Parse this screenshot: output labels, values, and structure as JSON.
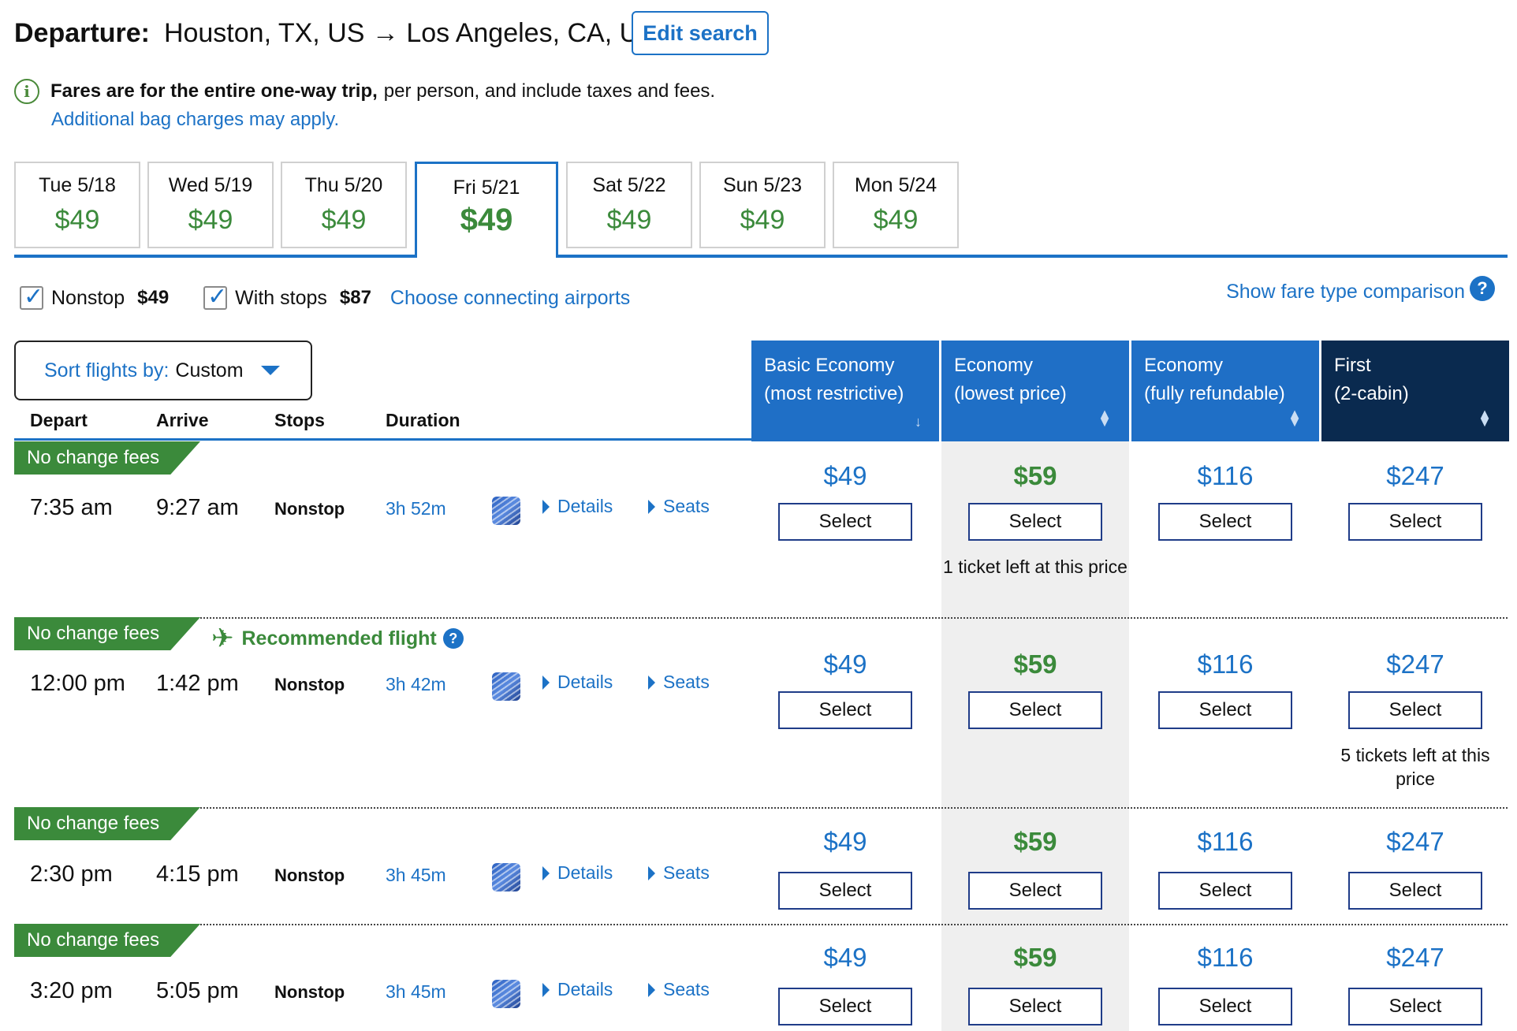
{
  "header": {
    "label": "Departure:",
    "route": "Houston, TX, US → Los Angeles, CA, US",
    "edit_label": "Edit search"
  },
  "info": {
    "bold": "Fares are for the entire one-way trip,",
    "rest": "per person, and include taxes and fees.",
    "bag_link": "Additional bag charges may apply."
  },
  "dates": [
    {
      "day": "Tue 5/18",
      "price": "$49"
    },
    {
      "day": "Wed 5/19",
      "price": "$49"
    },
    {
      "day": "Thu 5/20",
      "price": "$49"
    },
    {
      "day": "Fri 5/21",
      "price": "$49"
    },
    {
      "day": "Sat 5/22",
      "price": "$49"
    },
    {
      "day": "Sun 5/23",
      "price": "$49"
    },
    {
      "day": "Mon 5/24",
      "price": "$49"
    }
  ],
  "filters": {
    "nonstop_label": "Nonstop",
    "nonstop_price": "$49",
    "stops_label": "With stops",
    "stops_price": "$87",
    "connecting_link": "Choose connecting airports",
    "fare_compare": "Show fare type comparison"
  },
  "sort": {
    "key": "Sort flights by:",
    "value": "Custom"
  },
  "columns": {
    "depart": "Depart",
    "arrive": "Arrive",
    "stops": "Stops",
    "duration": "Duration"
  },
  "fare_headers": [
    {
      "line1": "Basic Economy",
      "line2": "(most restrictive)"
    },
    {
      "line1": "Economy",
      "line2": "(lowest price)"
    },
    {
      "line1": "Economy",
      "line2": "(fully refundable)"
    },
    {
      "line1": "First",
      "line2": "(2-cabin)"
    }
  ],
  "badge_text": "No change fees",
  "recommended_text": "Recommended flight",
  "details_label": "Details",
  "seats_label": "Seats",
  "select_label": "Select",
  "flights": [
    {
      "depart": "7:35 am",
      "arrive": "9:27 am",
      "stops": "Nonstop",
      "duration": "3h 52m",
      "prices": [
        "$49",
        "$59",
        "$116",
        "$247"
      ],
      "note_econ": "1 ticket left at this price",
      "note_first": ""
    },
    {
      "depart": "12:00 pm",
      "arrive": "1:42 pm",
      "stops": "Nonstop",
      "duration": "3h 42m",
      "prices": [
        "$49",
        "$59",
        "$116",
        "$247"
      ],
      "note_econ": "",
      "note_first": "5 tickets left at this price"
    },
    {
      "depart": "2:30 pm",
      "arrive": "4:15 pm",
      "stops": "Nonstop",
      "duration": "3h 45m",
      "prices": [
        "$49",
        "$59",
        "$116",
        "$247"
      ],
      "note_econ": "",
      "note_first": ""
    },
    {
      "depart": "3:20 pm",
      "arrive": "5:05 pm",
      "stops": "Nonstop",
      "duration": "3h 45m",
      "prices": [
        "$49",
        "$59",
        "$116",
        "$247"
      ],
      "note_econ": "",
      "note_first": ""
    }
  ]
}
